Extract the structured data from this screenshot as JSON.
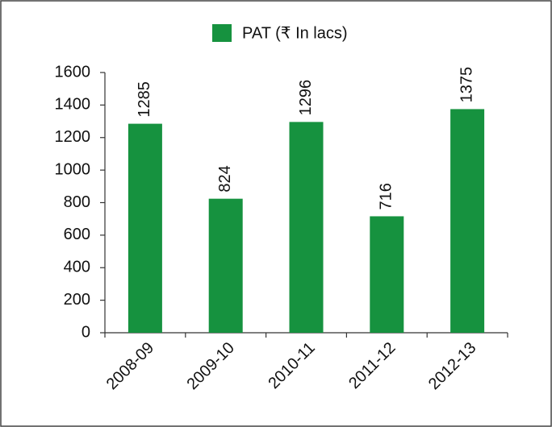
{
  "chart_data": {
    "type": "bar",
    "categories": [
      "2008-09",
      "2009-10",
      "2010-11",
      "2011-12",
      "2012-13"
    ],
    "series": [
      {
        "name": "PAT (₹ In lacs)",
        "color": "#16923f",
        "values": [
          1285,
          824,
          1296,
          716,
          1375
        ]
      }
    ],
    "ylim": [
      0,
      1600
    ],
    "yticks": [
      0,
      200,
      400,
      600,
      800,
      1000,
      1200,
      1400,
      1600
    ],
    "legend": "top"
  }
}
